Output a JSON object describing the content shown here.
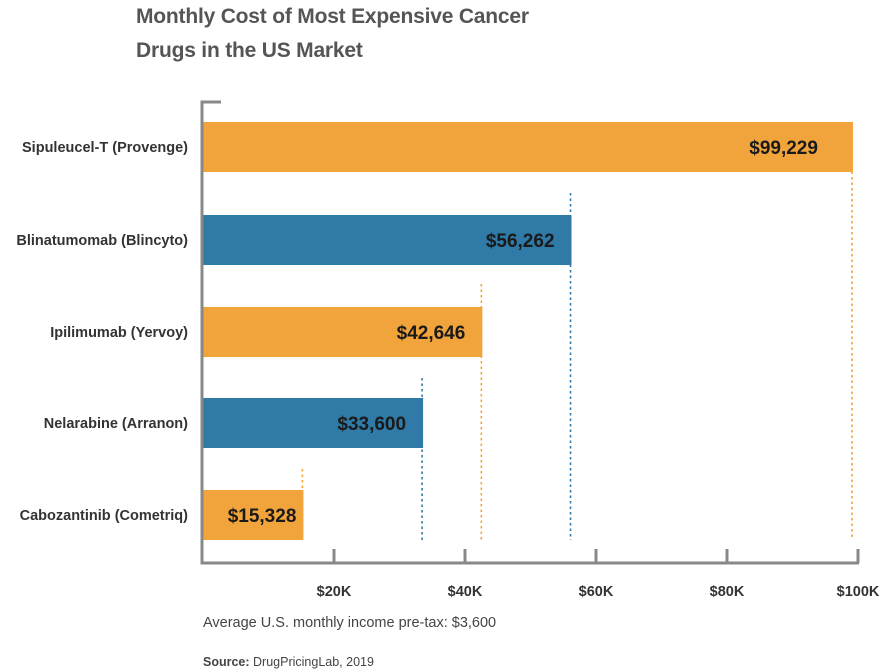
{
  "chart_data": {
    "type": "bar",
    "orientation": "horizontal",
    "title_lines": [
      "Monthly Cost of Most Expensive Cancer",
      "Drugs in the US Market"
    ],
    "categories": [
      "Sipuleucel-T (Provenge)",
      "Blinatumomab (Blincyto)",
      "Ipilimumab (Yervoy)",
      "Nelarabine (Arranon)",
      "Cabozantinib (Cometriq)"
    ],
    "values": [
      99229,
      56262,
      42646,
      33600,
      15328
    ],
    "value_labels": [
      "$99,229",
      "$56,262",
      "$42,646",
      "$33,600",
      "$15,328"
    ],
    "bar_colors": [
      "#F1A43B",
      "#2F7AA6",
      "#F1A43B",
      "#2F7AA6",
      "#F1A43B"
    ],
    "xlim": [
      0,
      100000
    ],
    "x_ticks": [
      20000,
      40000,
      60000,
      80000,
      100000
    ],
    "x_tick_labels": [
      "$20K",
      "$40K",
      "$60K",
      "$80K",
      "$100K"
    ],
    "grid": false,
    "legend": "none"
  },
  "footnote": "Average U.S. monthly income pre-tax: $3,600",
  "source": {
    "label": "Source:",
    "text": " DrugPricingLab, 2019"
  }
}
